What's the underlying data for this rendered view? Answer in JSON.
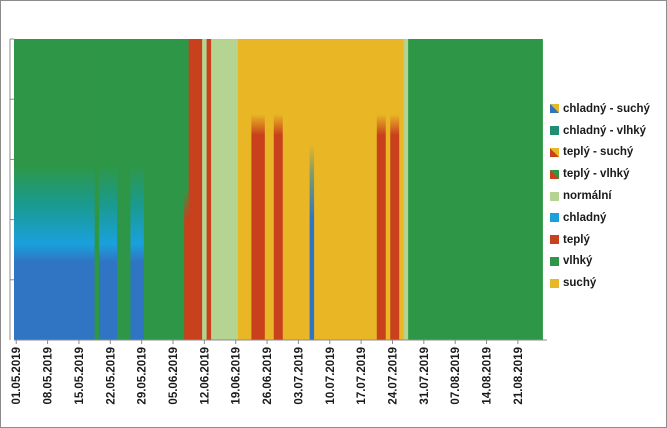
{
  "chart_data": {
    "type": "area",
    "title": "",
    "xlabel": "",
    "ylabel": "",
    "x_start": "01.05.2019",
    "x_end": "27.08.2019",
    "x_tick_labels": [
      "01.05.2019",
      "08.05.2019",
      "15.05.2019",
      "22.05.2019",
      "29.05.2019",
      "05.06.2019",
      "12.06.2019",
      "19.06.2019",
      "26.06.2019",
      "03.07.2019",
      "10.07.2019",
      "17.07.2019",
      "24.07.2019",
      "31.07.2019",
      "07.08.2019",
      "14.08.2019",
      "21.08.2019"
    ],
    "y_tick_count": 5,
    "legend_position": "right",
    "legend": [
      {
        "label": "chladný - suchý",
        "color": "#2f75c4",
        "color2": "#e9b625",
        "gradient": true
      },
      {
        "label": "chladný - vlhký",
        "color": "#1f8e74"
      },
      {
        "label": "teplý - suchý",
        "color": "#c8401c",
        "color2": "#e9b625",
        "gradient": true
      },
      {
        "label": "teplý - vlhký",
        "color": "#c8401c",
        "color2": "#2e9747",
        "gradient": true
      },
      {
        "label": "normální",
        "color": "#b5d491"
      },
      {
        "label": "chladný",
        "color": "#1aa0dc"
      },
      {
        "label": "teplý",
        "color": "#c8401c"
      },
      {
        "label": "vlhký",
        "color": "#2e9747"
      },
      {
        "label": "suchý",
        "color": "#e9b625"
      }
    ],
    "segments": [
      {
        "start": "01.05.2019",
        "end": "19.05.2019",
        "category": "chladný - vlhký"
      },
      {
        "start": "19.05.2019",
        "end": "20.05.2019",
        "category": "vlhký"
      },
      {
        "start": "20.05.2019",
        "end": "24.05.2019",
        "category": "chladný - vlhký"
      },
      {
        "start": "24.05.2019",
        "end": "27.05.2019",
        "category": "vlhký"
      },
      {
        "start": "27.05.2019",
        "end": "30.05.2019",
        "category": "chladný - vlhký"
      },
      {
        "start": "30.05.2019",
        "end": "08.06.2019",
        "category": "vlhký"
      },
      {
        "start": "08.06.2019",
        "end": "09.06.2019",
        "category": "teplý - vlhký"
      },
      {
        "start": "09.06.2019",
        "end": "12.06.2019",
        "category": "teplý"
      },
      {
        "start": "12.06.2019",
        "end": "13.06.2019",
        "category": "normální"
      },
      {
        "start": "13.06.2019",
        "end": "14.06.2019",
        "category": "teplý"
      },
      {
        "start": "14.06.2019",
        "end": "20.06.2019",
        "category": "normální"
      },
      {
        "start": "20.06.2019",
        "end": "23.06.2019",
        "category": "suchý"
      },
      {
        "start": "23.06.2019",
        "end": "26.06.2019",
        "category": "teplý - suchý"
      },
      {
        "start": "26.06.2019",
        "end": "28.06.2019",
        "category": "suchý"
      },
      {
        "start": "28.06.2019",
        "end": "30.06.2019",
        "category": "teplý - suchý"
      },
      {
        "start": "30.06.2019",
        "end": "06.07.2019",
        "category": "suchý"
      },
      {
        "start": "06.07.2019",
        "end": "07.07.2019",
        "category": "chladný - suchý"
      },
      {
        "start": "07.07.2019",
        "end": "21.07.2019",
        "category": "suchý"
      },
      {
        "start": "21.07.2019",
        "end": "23.07.2019",
        "category": "teplý - suchý"
      },
      {
        "start": "23.07.2019",
        "end": "24.07.2019",
        "category": "suchý"
      },
      {
        "start": "24.07.2019",
        "end": "26.07.2019",
        "category": "teplý - suchý"
      },
      {
        "start": "26.07.2019",
        "end": "27.07.2019",
        "category": "suchý"
      },
      {
        "start": "27.07.2019",
        "end": "28.07.2019",
        "category": "normální"
      },
      {
        "start": "28.07.2019",
        "end": "27.08.2019",
        "category": "vlhký"
      }
    ]
  }
}
